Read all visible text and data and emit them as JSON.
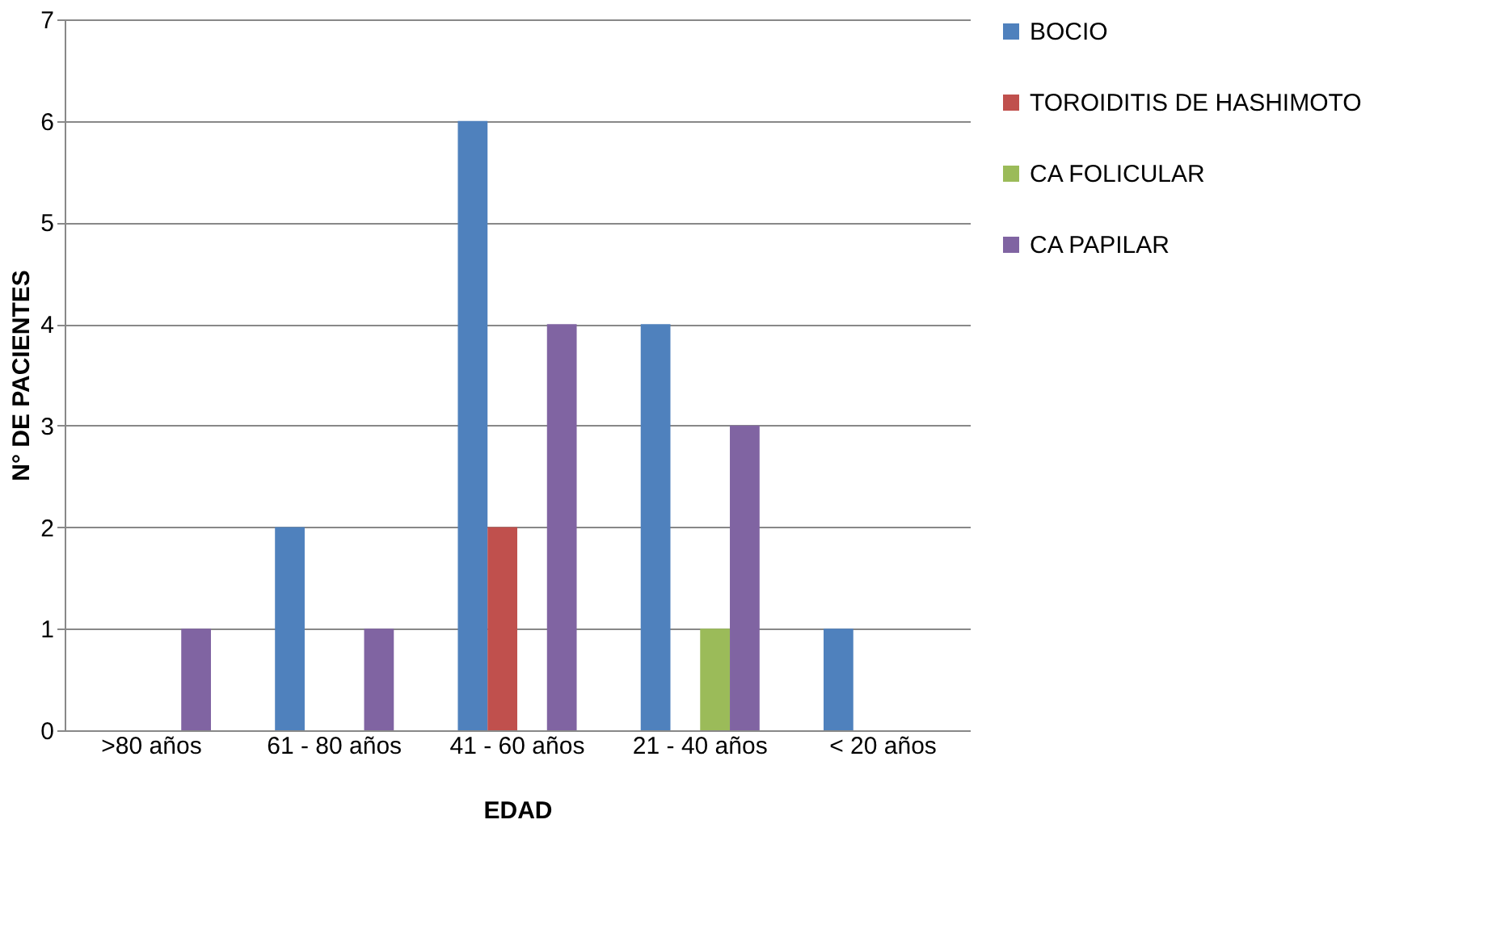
{
  "chart_data": {
    "type": "bar",
    "xlabel": "EDAD",
    "ylabel": "N° DE PACIENTES",
    "categories": [
      ">80 años",
      "61 - 80 años",
      "41 - 60 años",
      "21 - 40 años",
      "< 20 años"
    ],
    "series": [
      {
        "name": "BOCIO",
        "color": "#4f81bd",
        "values": [
          0,
          2,
          6,
          4,
          1
        ]
      },
      {
        "name": "TOROIDITIS DE HASHIMOTO",
        "color": "#c0504d",
        "values": [
          0,
          0,
          2,
          0,
          0
        ]
      },
      {
        "name": "CA FOLICULAR",
        "color": "#9bbb59",
        "values": [
          0,
          0,
          0,
          1,
          0
        ]
      },
      {
        "name": "CA PAPILAR",
        "color": "#8064a2",
        "values": [
          1,
          1,
          4,
          3,
          0
        ]
      }
    ],
    "ylim": [
      0,
      7
    ],
    "yticks": [
      0,
      1,
      2,
      3,
      4,
      5,
      6,
      7
    ],
    "grid": "y",
    "legend": "right"
  }
}
